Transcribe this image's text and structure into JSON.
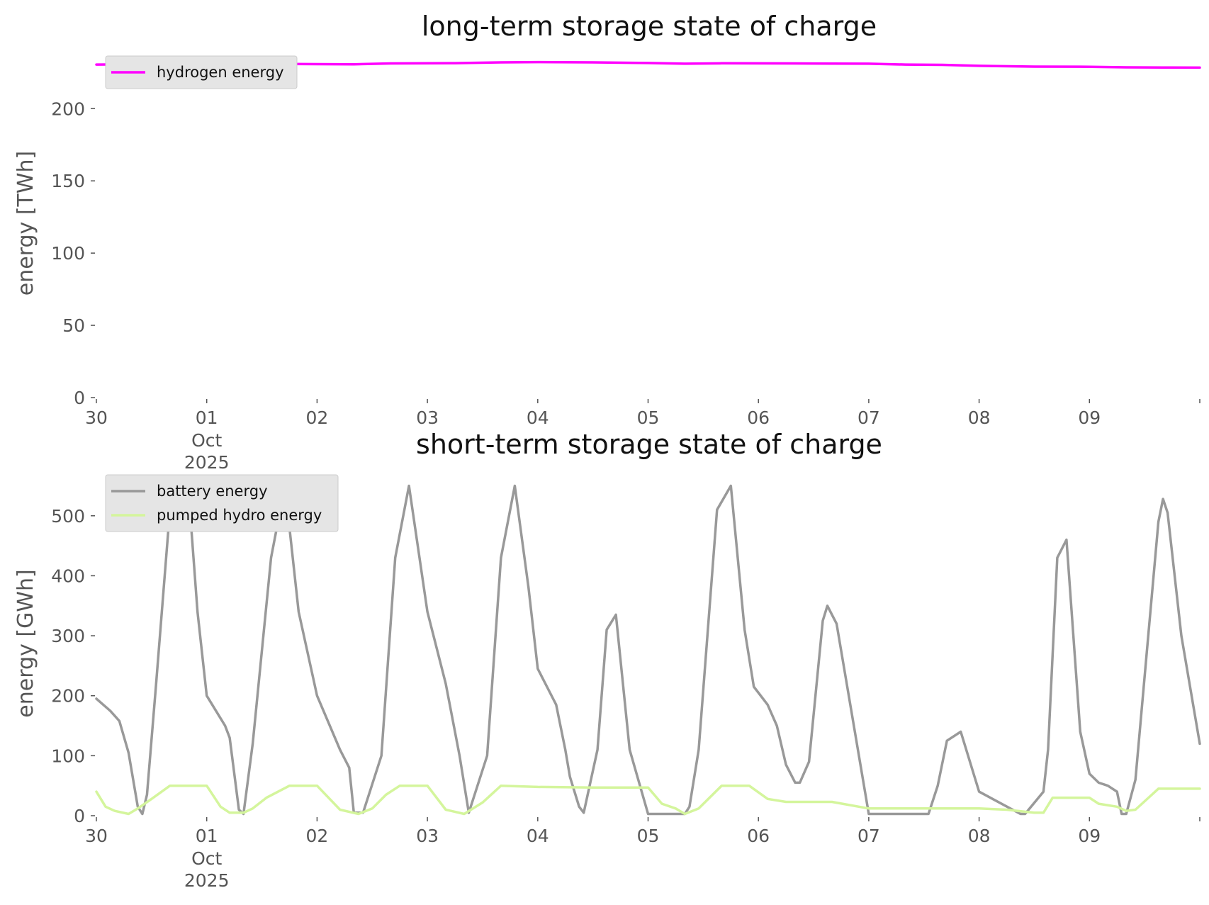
{
  "chart_data": [
    {
      "type": "line",
      "title": "long-term storage state of charge",
      "ylabel": "energy [TWh]",
      "xlabel": "",
      "x_tick_labels": [
        "30",
        "01",
        "02",
        "03",
        "04",
        "05",
        "06",
        "07",
        "08",
        "09"
      ],
      "x_secondary_labels": [
        "Oct",
        "2025"
      ],
      "x_range": [
        "2025-09-30 00:00",
        "2025-10-10 00:00"
      ],
      "ylim": [
        0,
        233
      ],
      "y_ticks": [
        0,
        50,
        100,
        150,
        200
      ],
      "grid": false,
      "legend_placement": "top-left",
      "series": [
        {
          "name": "hydrogen energy",
          "color": "#ff00ff",
          "x": [
            "2025-09-30 00:00",
            "2025-09-30 12:00",
            "2025-10-01 00:00",
            "2025-10-01 12:00",
            "2025-10-02 00:00",
            "2025-10-02 08:00",
            "2025-10-02 16:00",
            "2025-10-03 06:00",
            "2025-10-03 16:00",
            "2025-10-04 00:00",
            "2025-10-04 12:00",
            "2025-10-05 00:00",
            "2025-10-05 08:00",
            "2025-10-05 16:00",
            "2025-10-06 08:00",
            "2025-10-06 16:00",
            "2025-10-07 00:00",
            "2025-10-07 08:00",
            "2025-10-07 16:00",
            "2025-10-08 00:00",
            "2025-10-08 12:00",
            "2025-10-09 00:00",
            "2025-10-09 08:00",
            "2025-10-09 16:00",
            "2025-10-10 00:00"
          ],
          "y": [
            230.5,
            230.8,
            231.0,
            231.0,
            230.8,
            230.7,
            231.3,
            231.5,
            232.0,
            232.2,
            232.0,
            231.6,
            231.1,
            231.4,
            231.3,
            231.2,
            231.1,
            230.5,
            230.3,
            229.6,
            229.1,
            229.0,
            228.6,
            228.5,
            228.4
          ]
        }
      ]
    },
    {
      "type": "line",
      "title": "short-term storage state of charge",
      "ylabel": "energy [GWh]",
      "xlabel": "",
      "x_tick_labels": [
        "30",
        "01",
        "02",
        "03",
        "04",
        "05",
        "06",
        "07",
        "08",
        "09"
      ],
      "x_secondary_labels": [
        "Oct",
        "2025"
      ],
      "x_range": [
        "2025-09-30 00:00",
        "2025-10-10 00:00"
      ],
      "ylim": [
        0,
        560
      ],
      "y_ticks": [
        0,
        100,
        200,
        300,
        400,
        500
      ],
      "grid": false,
      "legend_placement": "top-left",
      "series": [
        {
          "name": "battery energy",
          "color": "#999999",
          "x": [
            "2025-09-30 00:00",
            "2025-09-30 03:00",
            "2025-09-30 05:00",
            "2025-09-30 07:00",
            "2025-09-30 09:00",
            "2025-09-30 10:00",
            "2025-09-30 11:00",
            "2025-09-30 13:00",
            "2025-09-30 16:00",
            "2025-09-30 20:00",
            "2025-09-30 22:00",
            "2025-10-01 00:00",
            "2025-10-01 04:00",
            "2025-10-01 05:00",
            "2025-10-01 07:00",
            "2025-10-01 08:00",
            "2025-10-01 10:00",
            "2025-10-01 14:00",
            "2025-10-01 17:00",
            "2025-10-01 20:00",
            "2025-10-02 00:00",
            "2025-10-02 05:00",
            "2025-10-02 07:00",
            "2025-10-02 08:00",
            "2025-10-02 10:00",
            "2025-10-02 14:00",
            "2025-10-02 17:00",
            "2025-10-02 20:00",
            "2025-10-03 00:00",
            "2025-10-03 04:00",
            "2025-10-03 06:00",
            "2025-10-03 07:00",
            "2025-10-03 09:00",
            "2025-10-03 13:00",
            "2025-10-03 16:00",
            "2025-10-03 19:00",
            "2025-10-03 22:00",
            "2025-10-04 00:00",
            "2025-10-04 02:00",
            "2025-10-04 04:00",
            "2025-10-04 06:00",
            "2025-10-04 07:00",
            "2025-10-04 09:00",
            "2025-10-04 10:00",
            "2025-10-04 13:00",
            "2025-10-04 15:00",
            "2025-10-04 17:00",
            "2025-10-04 20:00",
            "2025-10-05 00:00",
            "2025-10-05 08:00",
            "2025-10-05 09:00",
            "2025-10-05 11:00",
            "2025-10-05 15:00",
            "2025-10-05 18:00",
            "2025-10-05 21:00",
            "2025-10-05 23:00",
            "2025-10-06 02:00",
            "2025-10-06 04:00",
            "2025-10-06 06:00",
            "2025-10-06 08:00",
            "2025-10-06 09:00",
            "2025-10-06 11:00",
            "2025-10-06 14:00",
            "2025-10-06 15:00",
            "2025-10-06 17:00",
            "2025-10-07 00:00",
            "2025-10-07 10:00",
            "2025-10-07 13:00",
            "2025-10-07 15:00",
            "2025-10-07 17:00",
            "2025-10-07 20:00",
            "2025-10-08 00:00",
            "2025-10-08 09:00",
            "2025-10-08 10:00",
            "2025-10-08 14:00",
            "2025-10-08 15:00",
            "2025-10-08 17:00",
            "2025-10-08 19:00",
            "2025-10-08 22:00",
            "2025-10-09 00:00",
            "2025-10-09 02:00",
            "2025-10-09 04:00",
            "2025-10-09 06:00",
            "2025-10-09 07:00",
            "2025-10-09 08:00",
            "2025-10-09 10:00",
            "2025-10-09 15:00",
            "2025-10-09 16:00",
            "2025-10-09 17:00",
            "2025-10-09 20:00",
            "2025-10-10 00:00"
          ],
          "y": [
            195,
            175,
            158,
            105,
            15,
            3,
            35,
            220,
            510,
            545,
            340,
            200,
            150,
            130,
            10,
            3,
            120,
            430,
            550,
            340,
            200,
            110,
            80,
            5,
            5,
            100,
            430,
            550,
            340,
            220,
            140,
            100,
            5,
            100,
            430,
            550,
            380,
            245,
            215,
            185,
            110,
            65,
            15,
            5,
            110,
            310,
            335,
            110,
            3,
            3,
            15,
            110,
            510,
            550,
            310,
            215,
            185,
            150,
            85,
            55,
            55,
            90,
            325,
            350,
            320,
            3,
            3,
            3,
            50,
            125,
            140,
            40,
            3,
            3,
            40,
            110,
            430,
            460,
            140,
            70,
            55,
            50,
            40,
            3,
            3,
            60,
            490,
            528,
            505,
            300,
            120
          ]
        },
        {
          "name": "pumped hydro energy",
          "color": "#d4f59c",
          "x": [
            "2025-09-30 00:00",
            "2025-09-30 02:00",
            "2025-09-30 04:00",
            "2025-09-30 07:00",
            "2025-09-30 09:00",
            "2025-09-30 12:00",
            "2025-09-30 16:00",
            "2025-10-01 00:00",
            "2025-10-01 03:00",
            "2025-10-01 05:00",
            "2025-10-01 08:00",
            "2025-10-01 10:00",
            "2025-10-01 13:00",
            "2025-10-01 18:00",
            "2025-10-02 00:00",
            "2025-10-02 05:00",
            "2025-10-02 09:00",
            "2025-10-02 12:00",
            "2025-10-02 15:00",
            "2025-10-02 18:00",
            "2025-10-03 00:00",
            "2025-10-03 04:00",
            "2025-10-03 08:00",
            "2025-10-03 12:00",
            "2025-10-03 16:00",
            "2025-10-04 00:00",
            "2025-10-04 12:00",
            "2025-10-04 20:00",
            "2025-10-05 00:00",
            "2025-10-05 03:00",
            "2025-10-05 06:00",
            "2025-10-05 08:00",
            "2025-10-05 11:00",
            "2025-10-05 16:00",
            "2025-10-05 22:00",
            "2025-10-06 02:00",
            "2025-10-06 06:00",
            "2025-10-06 16:00",
            "2025-10-07 00:00",
            "2025-10-07 12:00",
            "2025-10-08 00:00",
            "2025-10-08 06:00",
            "2025-10-08 12:00",
            "2025-10-08 14:00",
            "2025-10-08 16:00",
            "2025-10-09 00:00",
            "2025-10-09 02:00",
            "2025-10-09 06:00",
            "2025-10-09 08:00",
            "2025-10-09 10:00",
            "2025-10-09 15:00",
            "2025-10-10 00:00"
          ],
          "y": [
            40,
            15,
            8,
            3,
            12,
            28,
            50,
            50,
            15,
            5,
            5,
            12,
            30,
            50,
            50,
            10,
            3,
            12,
            35,
            50,
            50,
            10,
            3,
            22,
            50,
            48,
            47,
            47,
            47,
            20,
            12,
            3,
            12,
            50,
            50,
            28,
            23,
            23,
            12,
            12,
            12,
            10,
            5,
            5,
            30,
            30,
            20,
            15,
            8,
            10,
            45,
            45
          ]
        }
      ]
    }
  ]
}
